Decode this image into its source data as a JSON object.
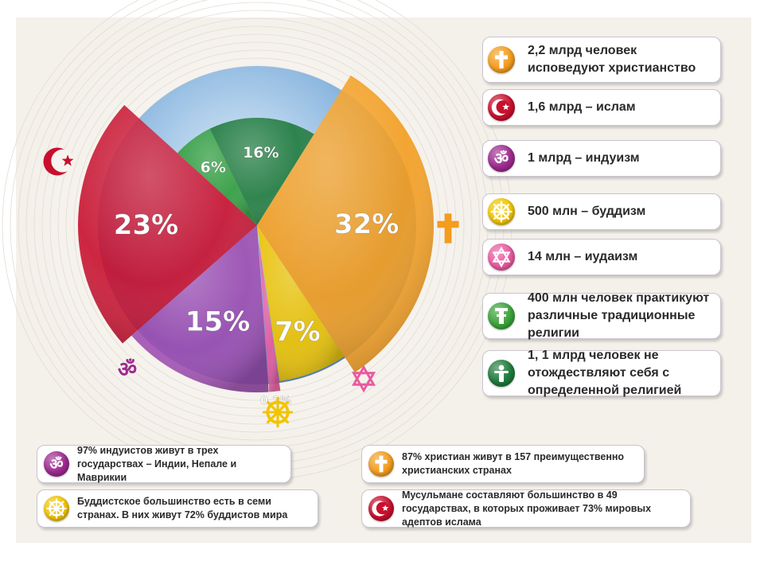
{
  "chart_data": {
    "type": "pie",
    "slices": [
      {
        "label": "32%",
        "value": 32,
        "color": "#f39c1e"
      },
      {
        "label": "7%",
        "value": 7,
        "color": "#f1c400"
      },
      {
        "label": "0,2%",
        "value": 0.2,
        "color": "#e85aa0"
      },
      {
        "label": "15%",
        "value": 15,
        "color": "#9d4bb0"
      },
      {
        "label": "23%",
        "value": 23,
        "color": "#c8102e"
      },
      {
        "label": "6%",
        "value": 6,
        "color": "#2e9b3a"
      },
      {
        "label": "16%",
        "value": 16,
        "color": "#1f7a3c"
      }
    ]
  },
  "legend": [
    {
      "text": "2,2 млрд человек исповедуют христианство",
      "icon": "cross-icon",
      "color": "#f39c1e"
    },
    {
      "text": "1,6 млрд – ислам",
      "icon": "crescent-star-icon",
      "color": "#c8102e"
    },
    {
      "text": "1 млрд – индуизм",
      "icon": "om-icon",
      "color": "#9d2a8e"
    },
    {
      "text": "500 млн – буддизм",
      "icon": "dharma-wheel-icon",
      "color": "#f1c400"
    },
    {
      "text": "14 млн – иудаизм",
      "icon": "star-of-david-icon",
      "color": "#e85aa0"
    },
    {
      "text": "400 млн человек практикуют различные традиционные религии",
      "icon": "totem-icon",
      "color": "#3aa23a"
    },
    {
      "text": "1, 1 млрд человек не отождествляют себя с определенной религией",
      "icon": "person-icon",
      "color": "#1f7a3c"
    }
  ],
  "facts": [
    {
      "text": "97% индуистов живут в трех государствах – Индии, Непале и Маврикии",
      "icon": "om-icon",
      "color": "#9d2a8e"
    },
    {
      "text": "87% христиан живут в 157 преимущественно христианских странах",
      "icon": "cross-icon",
      "color": "#f39c1e"
    },
    {
      "text": "Буддистское большинство есть в семи странах. В них живут 72% буддистов мира",
      "icon": "dharma-wheel-icon",
      "color": "#f1c400"
    },
    {
      "text": "Мусульмане составляют большинство в 49 государствах, в которых проживает 73% мировых адептов ислама",
      "icon": "crescent-star-icon",
      "color": "#c8102e"
    }
  ],
  "symbols": {
    "christianity": {
      "icon": "cross-icon",
      "color": "#f39c1e"
    },
    "islam": {
      "icon": "crescent-star-icon",
      "color": "#c8102e"
    },
    "hinduism": {
      "icon": "om-icon",
      "color": "#9d2a8e"
    },
    "buddhism": {
      "icon": "dharma-wheel-icon",
      "color": "#f1c400"
    },
    "judaism": {
      "icon": "star-of-david-icon",
      "color": "#e85aa0"
    }
  }
}
